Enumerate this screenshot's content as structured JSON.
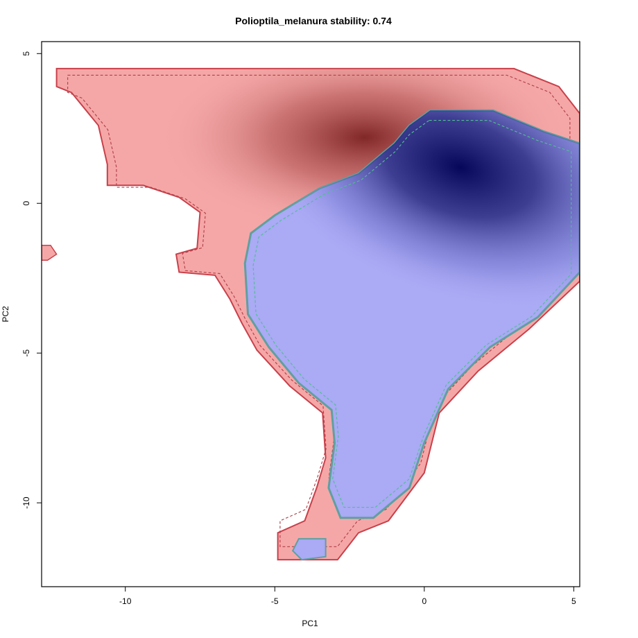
{
  "chart_data": {
    "type": "heatmap",
    "title": "Polioptila_melanura stability: 0.74",
    "xlabel": "PC1",
    "ylabel": "PC2",
    "xlim": [
      -12.8,
      5.2
    ],
    "ylim": [
      -12.8,
      5.4
    ],
    "xticks": [
      {
        "value": -10,
        "label": "-10"
      },
      {
        "value": -5,
        "label": "-5"
      },
      {
        "value": 0,
        "label": "0"
      },
      {
        "value": 5,
        "label": "5"
      }
    ],
    "yticks": [
      {
        "value": 5,
        "label": "5"
      },
      {
        "value": 0,
        "label": "0"
      },
      {
        "value": -5,
        "label": "-5"
      },
      {
        "value": -10,
        "label": "-10"
      }
    ],
    "layers": [
      {
        "name": "red niche",
        "fill": "#f5a7a7",
        "outline": "#c8404a",
        "outline_dashed": "#b0404a",
        "peak": {
          "x": -2.0,
          "y": 2.2
        },
        "peak_color": "#7a2020",
        "polygon": [
          [
            -12.3,
            4.5
          ],
          [
            1.7,
            4.5
          ],
          [
            3.5,
            3.9
          ],
          [
            5.2,
            3.0
          ],
          [
            5.2,
            2.0
          ],
          [
            2.5,
            2.3
          ],
          [
            0.8,
            3.2
          ],
          [
            -0.5,
            2.6
          ],
          [
            -1.8,
            1.5
          ],
          [
            -3.5,
            0.5
          ],
          [
            -5.5,
            -0.5
          ],
          [
            -6.1,
            -2.0
          ],
          [
            -6.0,
            -4.0
          ],
          [
            -5.5,
            -4.8
          ],
          [
            -4.5,
            -6.0
          ],
          [
            -3.3,
            -7.0
          ],
          [
            -3.1,
            -8.5
          ],
          [
            -3.5,
            -9.5
          ],
          [
            -4.0,
            -10.8
          ],
          [
            -4.9,
            -11.0
          ],
          [
            -4.9,
            -11.9
          ],
          [
            -2.9,
            -11.9
          ],
          [
            -2.2,
            -11.0
          ],
          [
            -1.2,
            -10.5
          ],
          [
            0.0,
            -9.0
          ],
          [
            0.5,
            -7.0
          ],
          [
            1.8,
            -5.5
          ],
          [
            3.5,
            -4.0
          ],
          [
            5.2,
            -2.3
          ],
          [
            5.2,
            3.0
          ],
          [
            4.0,
            4.0
          ],
          [
            5.2,
            4.5
          ],
          [
            5.2,
            3.9
          ],
          [
            4.0,
            3.9
          ],
          [
            5.2,
            3.0
          ],
          [
            4.5,
            3.9
          ],
          [
            3.0,
            4.5
          ],
          [
            1.7,
            4.5
          ],
          [
            5.2,
            3.0
          ],
          [
            5.2,
            2.0
          ],
          [
            3.0,
            2.5
          ],
          [
            5.2,
            -2.3
          ],
          [
            3.5,
            -4.0
          ],
          [
            1.8,
            -5.5
          ],
          [
            0.5,
            -7.0
          ],
          [
            0.0,
            -9.0
          ],
          [
            -1.2,
            -10.5
          ],
          [
            -2.2,
            -11.0
          ],
          [
            -2.9,
            -11.9
          ],
          [
            -4.9,
            -11.9
          ],
          [
            -4.9,
            -11.0
          ],
          [
            -4.0,
            -10.8
          ],
          [
            -3.5,
            -9.5
          ],
          [
            -3.1,
            -8.5
          ],
          [
            -3.3,
            -7.0
          ],
          [
            -4.5,
            -6.0
          ],
          [
            -5.5,
            -4.8
          ],
          [
            -6.0,
            -4.0
          ],
          [
            -6.4,
            -3.3
          ],
          [
            -7.0,
            -2.4
          ],
          [
            -8.2,
            -2.3
          ],
          [
            -8.3,
            -1.7
          ],
          [
            -7.5,
            -1.5
          ],
          [
            -7.6,
            -0.3
          ],
          [
            -8.3,
            0.2
          ],
          [
            -9.5,
            0.6
          ],
          [
            -10.5,
            0.6
          ],
          [
            -10.6,
            1.2
          ],
          [
            -10.9,
            2.5
          ],
          [
            -11.8,
            3.8
          ],
          [
            -12.3,
            3.8
          ]
        ]
      },
      {
        "name": "blue niche",
        "fill": "#aaaaf5",
        "outline": "#5fa0a0",
        "outline_dashed": "#4fbf8f",
        "peak": {
          "x": 1.2,
          "y": 1.2
        },
        "peak_color": "#06065a",
        "polygon": [
          [
            0.2,
            3.1
          ],
          [
            2.3,
            3.1
          ],
          [
            4.0,
            2.4
          ],
          [
            5.2,
            2.0
          ],
          [
            5.2,
            -2.3
          ],
          [
            3.8,
            -3.8
          ],
          [
            2.2,
            -4.8
          ],
          [
            0.8,
            -6.2
          ],
          [
            0.0,
            -8.0
          ],
          [
            -0.5,
            -9.5
          ],
          [
            -1.7,
            -10.5
          ],
          [
            -2.8,
            -10.5
          ],
          [
            -3.2,
            -9.5
          ],
          [
            -3.0,
            -8.0
          ],
          [
            -3.1,
            -6.9
          ],
          [
            -4.2,
            -6.0
          ],
          [
            -5.2,
            -4.8
          ],
          [
            -5.9,
            -3.7
          ],
          [
            -6.0,
            -2.0
          ],
          [
            -5.8,
            -1.0
          ],
          [
            -5.0,
            -0.4
          ],
          [
            -3.5,
            0.5
          ],
          [
            -2.2,
            1.0
          ],
          [
            -1.0,
            2.0
          ],
          [
            -0.5,
            2.6
          ]
        ]
      },
      {
        "name": "blue island",
        "fill": "#aaaaf5",
        "outline": "#5fa0a0",
        "polygon": [
          [
            -4.2,
            -11.2
          ],
          [
            -3.3,
            -11.2
          ],
          [
            -3.3,
            -11.8
          ],
          [
            -4.1,
            -11.9
          ],
          [
            -4.4,
            -11.6
          ]
        ]
      },
      {
        "name": "red fragment",
        "fill": "#f5a7a7",
        "outline": "#c8404a",
        "polygon": [
          [
            -12.8,
            -1.4
          ],
          [
            -12.5,
            -1.4
          ],
          [
            -12.3,
            -1.7
          ],
          [
            -12.6,
            -1.9
          ],
          [
            -12.8,
            -1.9
          ]
        ]
      }
    ]
  }
}
